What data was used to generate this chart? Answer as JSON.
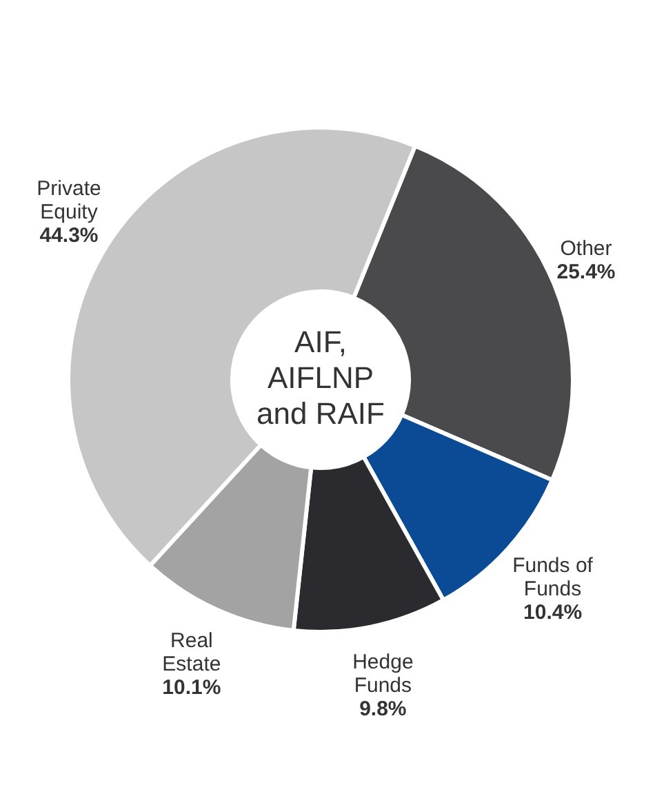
{
  "chart_data": {
    "type": "donut",
    "title": "AIF, AIFLNP and RAIF",
    "categories": [
      "Other",
      "Funds of Funds",
      "Hedge Funds",
      "Real Estate",
      "Private Equity"
    ],
    "values": [
      25.4,
      10.4,
      9.8,
      10.1,
      44.3
    ],
    "value_labels": [
      "25.4%",
      "10.4%",
      "9.8%",
      "10.1%",
      "44.3%"
    ],
    "colors": [
      "#4a4a4c",
      "#0b4a95",
      "#2b2b2f",
      "#a3a3a3",
      "#c6c6c6"
    ],
    "legend": false
  }
}
